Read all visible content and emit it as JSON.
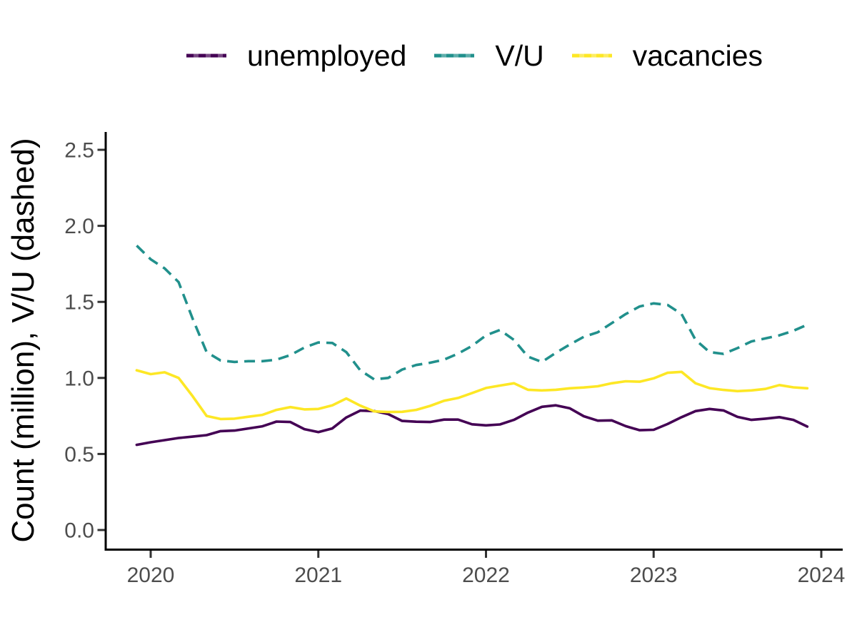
{
  "figure": {
    "background": "#ffffff",
    "y_axis_title": "Count (million), V/U (dashed)"
  },
  "axis": {
    "axis_line_color": "#000000",
    "tick_mark_color": "#333333",
    "tick_label_color": "#4d4d4d",
    "x_tick_labels": [
      "2020",
      "2021",
      "2022",
      "2023",
      "2024"
    ],
    "y_tick_labels": [
      "0.0",
      "0.5",
      "1.0",
      "1.5",
      "2.0",
      "2.5"
    ]
  },
  "chart_data": {
    "type": "line",
    "title": "",
    "xlabel": "",
    "ylabel": "Count (million), V/U (dashed)",
    "grid": false,
    "legend_position": "top",
    "x_ticks": [
      2020,
      2021,
      2022,
      2023,
      2024
    ],
    "y_ticks": [
      0.0,
      0.5,
      1.0,
      1.5,
      2.0,
      2.5
    ],
    "ylim": [
      -0.13,
      2.65
    ],
    "xlim_years": [
      2019.72,
      2024.13
    ],
    "x": [
      "2019-12",
      "2020-01",
      "2020-02",
      "2020-03",
      "2020-04",
      "2020-05",
      "2020-06",
      "2020-07",
      "2020-08",
      "2020-09",
      "2020-10",
      "2020-11",
      "2020-12",
      "2021-01",
      "2021-02",
      "2021-03",
      "2021-04",
      "2021-05",
      "2021-06",
      "2021-07",
      "2021-08",
      "2021-09",
      "2021-10",
      "2021-11",
      "2021-12",
      "2022-01",
      "2022-02",
      "2022-03",
      "2022-04",
      "2022-05",
      "2022-06",
      "2022-07",
      "2022-08",
      "2022-09",
      "2022-10",
      "2022-11",
      "2022-12",
      "2023-01",
      "2023-02",
      "2023-03",
      "2023-04",
      "2023-05",
      "2023-06",
      "2023-07",
      "2023-08",
      "2023-09",
      "2023-10",
      "2023-11",
      "2023-12"
    ],
    "series": [
      {
        "name": "unemployed",
        "color": "#440154",
        "dash": "solid",
        "values": [
          0.56,
          0.577,
          0.591,
          0.605,
          0.614,
          0.624,
          0.65,
          0.654,
          0.668,
          0.682,
          0.713,
          0.71,
          0.663,
          0.644,
          0.668,
          0.74,
          0.785,
          0.782,
          0.762,
          0.717,
          0.712,
          0.71,
          0.726,
          0.726,
          0.695,
          0.688,
          0.694,
          0.724,
          0.772,
          0.81,
          0.82,
          0.8,
          0.748,
          0.719,
          0.721,
          0.683,
          0.656,
          0.659,
          0.697,
          0.742,
          0.782,
          0.796,
          0.786,
          0.744,
          0.724,
          0.732,
          0.742,
          0.724,
          0.68
        ]
      },
      {
        "name": "V/U",
        "color": "#21908C",
        "dash": "dashed",
        "values": [
          1.87,
          1.78,
          1.72,
          1.63,
          1.39,
          1.17,
          1.115,
          1.105,
          1.11,
          1.11,
          1.12,
          1.15,
          1.2,
          1.233,
          1.23,
          1.17,
          1.05,
          0.99,
          1.0,
          1.055,
          1.085,
          1.1,
          1.12,
          1.16,
          1.21,
          1.28,
          1.315,
          1.25,
          1.14,
          1.105,
          1.165,
          1.22,
          1.27,
          1.3,
          1.36,
          1.42,
          1.47,
          1.49,
          1.48,
          1.42,
          1.25,
          1.17,
          1.158,
          1.196,
          1.24,
          1.26,
          1.28,
          1.31,
          1.35
        ]
      },
      {
        "name": "vacancies",
        "color": "#FDE725",
        "dash": "solid",
        "values": [
          1.05,
          1.025,
          1.037,
          1.0,
          0.88,
          0.75,
          0.73,
          0.732,
          0.745,
          0.757,
          0.79,
          0.808,
          0.793,
          0.796,
          0.82,
          0.865,
          0.818,
          0.78,
          0.776,
          0.777,
          0.79,
          0.816,
          0.85,
          0.868,
          0.9,
          0.934,
          0.95,
          0.965,
          0.922,
          0.918,
          0.922,
          0.932,
          0.937,
          0.945,
          0.965,
          0.978,
          0.975,
          0.997,
          1.034,
          1.04,
          0.965,
          0.933,
          0.921,
          0.913,
          0.918,
          0.928,
          0.953,
          0.938,
          0.932
        ]
      }
    ]
  }
}
